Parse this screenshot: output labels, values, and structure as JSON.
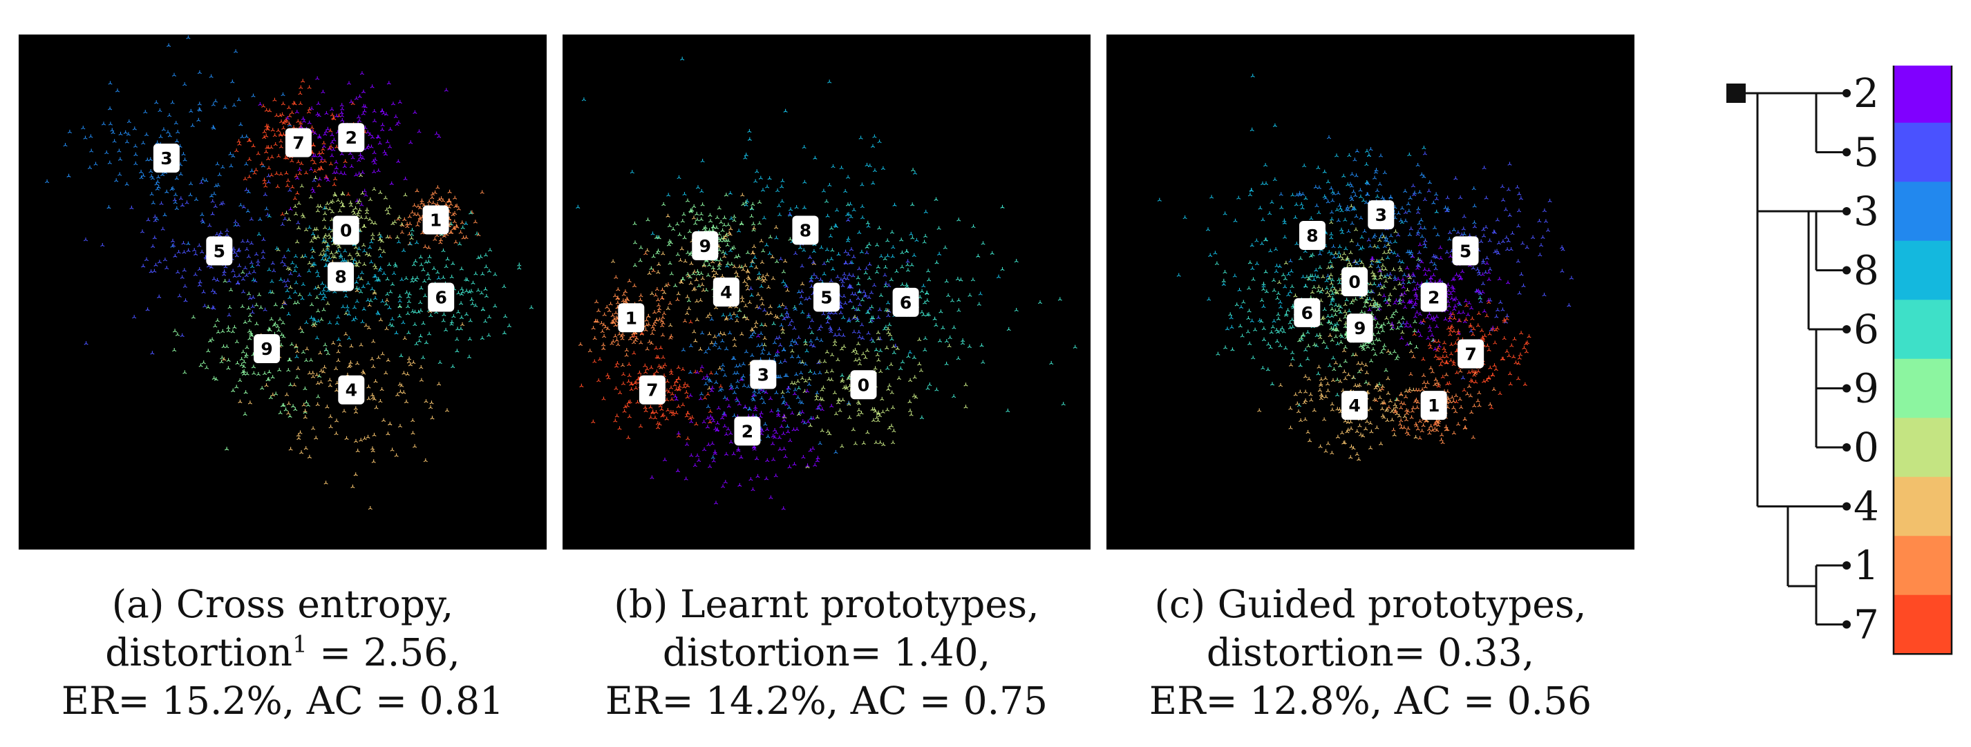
{
  "figure": {
    "panels": [
      {
        "caption": [
          "(a) Cross entropy,",
          "distortion",
          "1",
          " = 2.56,",
          "ER= 15.2%, AC = 0.81"
        ],
        "label_a": "(a) Cross entropy,",
        "label_b_prefix": "distortion",
        "label_b_sup": "1",
        "label_b_suffix": " = 2.56,",
        "label_c": "ER= 15.2%, AC = 0.81"
      },
      {
        "label_a": "(b) Learnt prototypes,",
        "label_b": "distortion= 1.40,",
        "label_c": "ER= 14.2%, AC = 0.75"
      },
      {
        "label_a": "(c) Guided prototypes,",
        "label_b": "distortion= 0.33,",
        "label_c": "ER= 12.8%, AC = 0.56"
      }
    ]
  },
  "chart_data": [
    {
      "type": "scatter",
      "title": "(a) Cross entropy",
      "distortion": 2.56,
      "error_rate_percent": 15.2,
      "AC": 0.81,
      "class_centers": [
        {
          "label": "3",
          "x": 0.28,
          "y": 0.24,
          "spread": 0.09
        },
        {
          "label": "7",
          "x": 0.53,
          "y": 0.21,
          "spread": 0.055
        },
        {
          "label": "2",
          "x": 0.63,
          "y": 0.2,
          "spread": 0.06
        },
        {
          "label": "1",
          "x": 0.79,
          "y": 0.36,
          "spread": 0.03
        },
        {
          "label": "0",
          "x": 0.62,
          "y": 0.38,
          "spread": 0.06
        },
        {
          "label": "5",
          "x": 0.38,
          "y": 0.42,
          "spread": 0.08
        },
        {
          "label": "8",
          "x": 0.61,
          "y": 0.47,
          "spread": 0.07
        },
        {
          "label": "6",
          "x": 0.8,
          "y": 0.51,
          "spread": 0.07
        },
        {
          "label": "9",
          "x": 0.47,
          "y": 0.61,
          "spread": 0.07
        },
        {
          "label": "4",
          "x": 0.63,
          "y": 0.69,
          "spread": 0.09
        }
      ]
    },
    {
      "type": "scatter",
      "title": "(b) Learnt prototypes",
      "distortion": 1.4,
      "error_rate_percent": 14.2,
      "AC": 0.75,
      "class_centers": [
        {
          "label": "8",
          "x": 0.46,
          "y": 0.38,
          "spread": 0.13
        },
        {
          "label": "9",
          "x": 0.27,
          "y": 0.41,
          "spread": 0.06
        },
        {
          "label": "4",
          "x": 0.31,
          "y": 0.5,
          "spread": 0.07
        },
        {
          "label": "5",
          "x": 0.5,
          "y": 0.51,
          "spread": 0.06
        },
        {
          "label": "6",
          "x": 0.65,
          "y": 0.52,
          "spread": 0.11
        },
        {
          "label": "1",
          "x": 0.13,
          "y": 0.55,
          "spread": 0.04
        },
        {
          "label": "3",
          "x": 0.38,
          "y": 0.66,
          "spread": 0.07
        },
        {
          "label": "0",
          "x": 0.57,
          "y": 0.68,
          "spread": 0.07
        },
        {
          "label": "7",
          "x": 0.17,
          "y": 0.69,
          "spread": 0.05
        },
        {
          "label": "2",
          "x": 0.35,
          "y": 0.77,
          "spread": 0.07
        }
      ]
    },
    {
      "type": "scatter",
      "title": "(c) Guided prototypes",
      "distortion": 0.33,
      "error_rate_percent": 12.8,
      "AC": 0.56,
      "class_centers": [
        {
          "label": "3",
          "x": 0.52,
          "y": 0.35,
          "spread": 0.08
        },
        {
          "label": "8",
          "x": 0.39,
          "y": 0.39,
          "spread": 0.11
        },
        {
          "label": "5",
          "x": 0.68,
          "y": 0.42,
          "spread": 0.09
        },
        {
          "label": "0",
          "x": 0.47,
          "y": 0.48,
          "spread": 0.05
        },
        {
          "label": "2",
          "x": 0.62,
          "y": 0.51,
          "spread": 0.05
        },
        {
          "label": "6",
          "x": 0.38,
          "y": 0.54,
          "spread": 0.08
        },
        {
          "label": "9",
          "x": 0.48,
          "y": 0.57,
          "spread": 0.05
        },
        {
          "label": "7",
          "x": 0.69,
          "y": 0.62,
          "spread": 0.05
        },
        {
          "label": "4",
          "x": 0.47,
          "y": 0.72,
          "spread": 0.06
        },
        {
          "label": "1",
          "x": 0.62,
          "y": 0.72,
          "spread": 0.04
        }
      ]
    }
  ],
  "legend": {
    "order": [
      "2",
      "5",
      "3",
      "8",
      "6",
      "9",
      "0",
      "4",
      "1",
      "7"
    ],
    "colors": [
      "#8000ff",
      "#4a52ff",
      "#2288ee",
      "#14b8de",
      "#3ee0c8",
      "#8cf5a0",
      "#c4e482",
      "#f2c06c",
      "#ff8a4a",
      "#ff4a24"
    ]
  },
  "colors": {
    "0": "#c4e482",
    "1": "#ff8a4a",
    "2": "#8000ff",
    "3": "#2288ee",
    "4": "#f2c06c",
    "5": "#4a52ff",
    "6": "#3ee0c8",
    "7": "#ff4a24",
    "8": "#14b8de",
    "9": "#8cf5a0"
  }
}
